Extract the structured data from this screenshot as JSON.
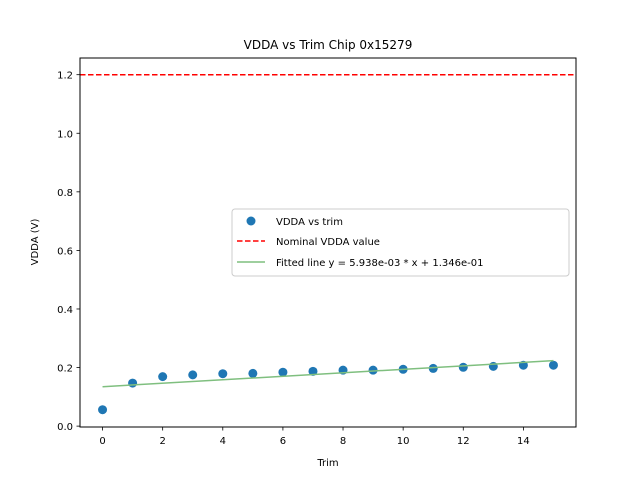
{
  "chart_data": {
    "type": "scatter",
    "title": "VDDA vs Trim Chip 0x15279",
    "xlabel": "Trim",
    "ylabel": "VDDA (V)",
    "xlim": [
      -0.75,
      15.75
    ],
    "ylim": [
      -0.003,
      1.257
    ],
    "xticks": [
      0,
      2,
      4,
      6,
      8,
      10,
      12,
      14
    ],
    "yticks": [
      0.0,
      0.2,
      0.4,
      0.6,
      0.8,
      1.0,
      1.2
    ],
    "xtick_labels": [
      "0",
      "2",
      "4",
      "6",
      "8",
      "10",
      "12",
      "14"
    ],
    "ytick_labels": [
      "0.0",
      "0.2",
      "0.4",
      "0.6",
      "0.8",
      "1.0",
      "1.2"
    ],
    "grid": false,
    "legend_position": "center-right",
    "series": [
      {
        "name": "VDDA vs trim",
        "kind": "scatter",
        "color": "#1f77b4",
        "x": [
          0,
          1,
          2,
          3,
          4,
          5,
          6,
          7,
          8,
          9,
          10,
          11,
          12,
          13,
          14,
          15
        ],
        "y": [
          0.056,
          0.147,
          0.169,
          0.175,
          0.179,
          0.18,
          0.184,
          0.187,
          0.191,
          0.191,
          0.194,
          0.197,
          0.201,
          0.204,
          0.208,
          0.208
        ]
      },
      {
        "name": "Nominal VDDA value",
        "kind": "hline",
        "color": "#ff0000",
        "y": 1.2
      },
      {
        "name": "Fitted line y = 5.938e-03 * x + 1.346e-01",
        "kind": "line",
        "color": "#7fbf7f",
        "slope": 0.005938,
        "intercept": 0.1346,
        "x_range": [
          0,
          15
        ]
      }
    ]
  }
}
